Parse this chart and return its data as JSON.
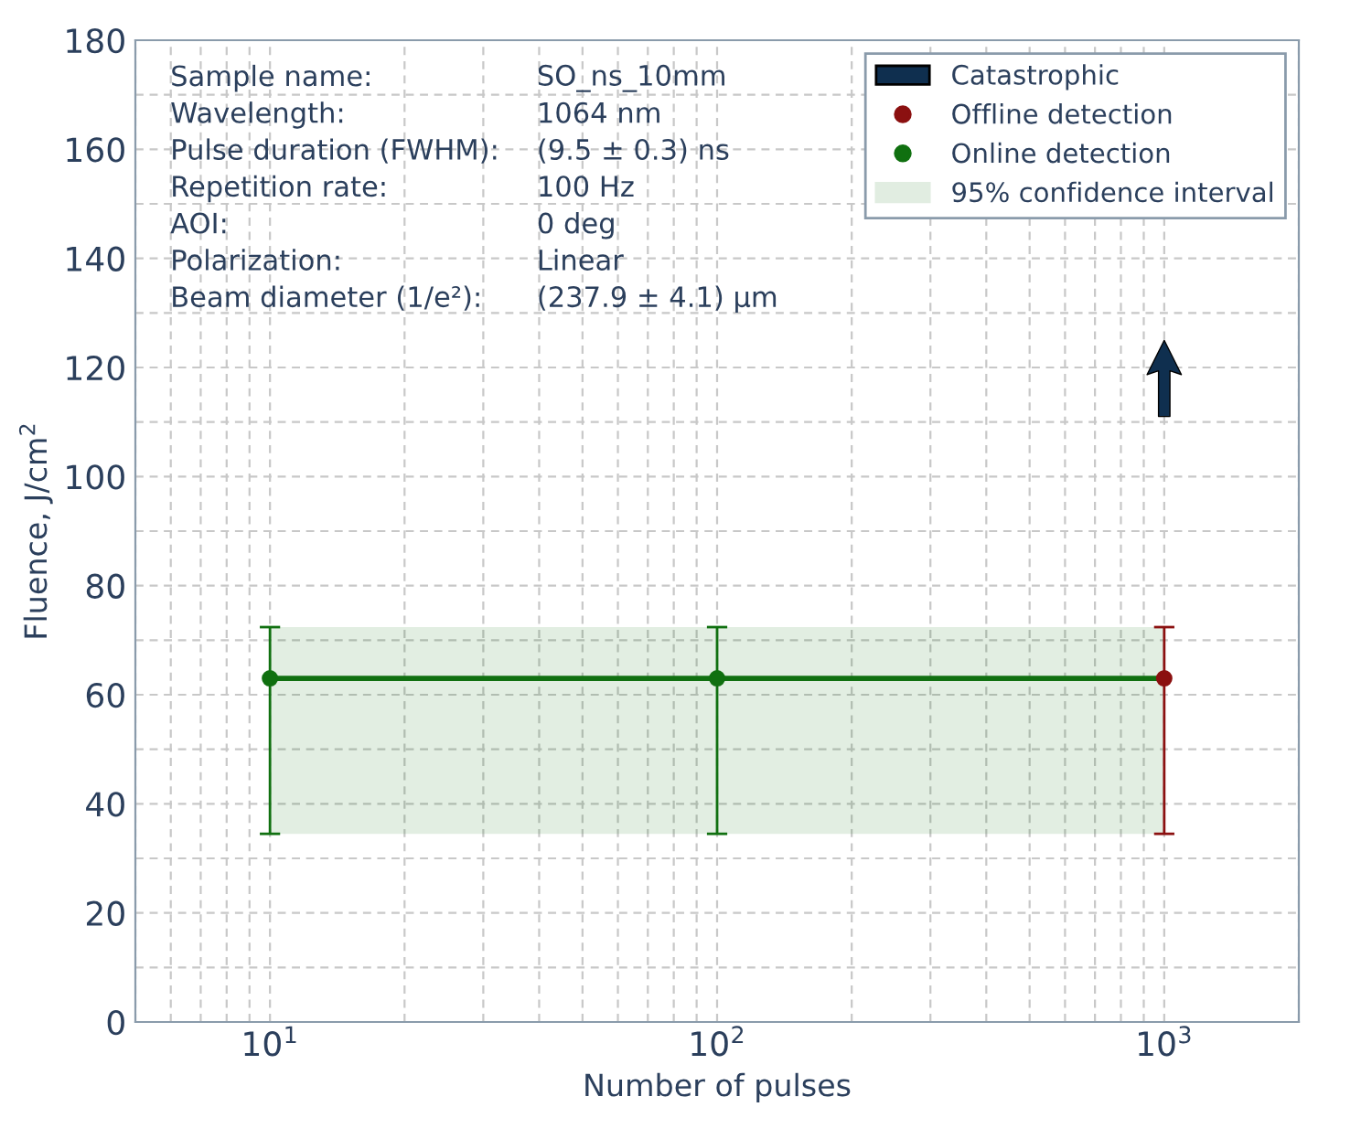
{
  "chart_data": {
    "type": "scatter",
    "xlabel": "Number of pulses",
    "ylabel": "Fluence, J/cm$^{2}$",
    "log": "x",
    "xlim": [
      5,
      2000
    ],
    "xticks": [
      {
        "value": 10,
        "label": "10$^{1}$"
      },
      {
        "value": 100,
        "label": "10$^{2}$"
      },
      {
        "value": 1000,
        "label": "10$^{3}$"
      }
    ],
    "ylim": [
      0,
      180
    ],
    "yticks": [
      0,
      20,
      40,
      60,
      80,
      100,
      120,
      140,
      160,
      180
    ],
    "grid": true,
    "legend": "top right",
    "series": [
      {
        "name": "95% confidence interval",
        "type": "line",
        "color": "#107010",
        "x": [
          10,
          100,
          1000
        ],
        "values": [
          63,
          63,
          63
        ],
        "lower": [
          34.5,
          34.5,
          34.5
        ],
        "upper": [
          72.4,
          72.4,
          72.4
        ],
        "marker": "none"
      },
      {
        "name": "Catastrophic",
        "color": "#0f2f4f",
        "x": [
          1000
        ],
        "values": [
          118
        ],
        "marker": "triangle"
      },
      {
        "name": "Offline detection",
        "color": "#8b1010",
        "x": [
          1000
        ],
        "values": [
          63
        ],
        "errors": [
          [
            34.5,
            72.4
          ]
        ],
        "marker": "circle"
      },
      {
        "name": "Online detection",
        "color": "#107010",
        "x": [
          10,
          100
        ],
        "values": [
          63,
          63
        ],
        "errors": [
          [
            34.5,
            72.4
          ],
          [
            34.5,
            72.4
          ]
        ],
        "marker": "circle"
      }
    ],
    "annotations": [
      "Sample name:",
      "SO_ns_10mm",
      "Wavelength:",
      "1064 nm",
      "Pulse duration (FWHM):",
      "(9.5 ± 0.3) ns",
      "Repetition rate:",
      "100 Hz",
      "AOI:",
      "0 deg",
      "Polarization:",
      "Linear",
      "Beam diameter (1/e²):",
      "(237.9 ± 4.1) µm"
    ]
  }
}
